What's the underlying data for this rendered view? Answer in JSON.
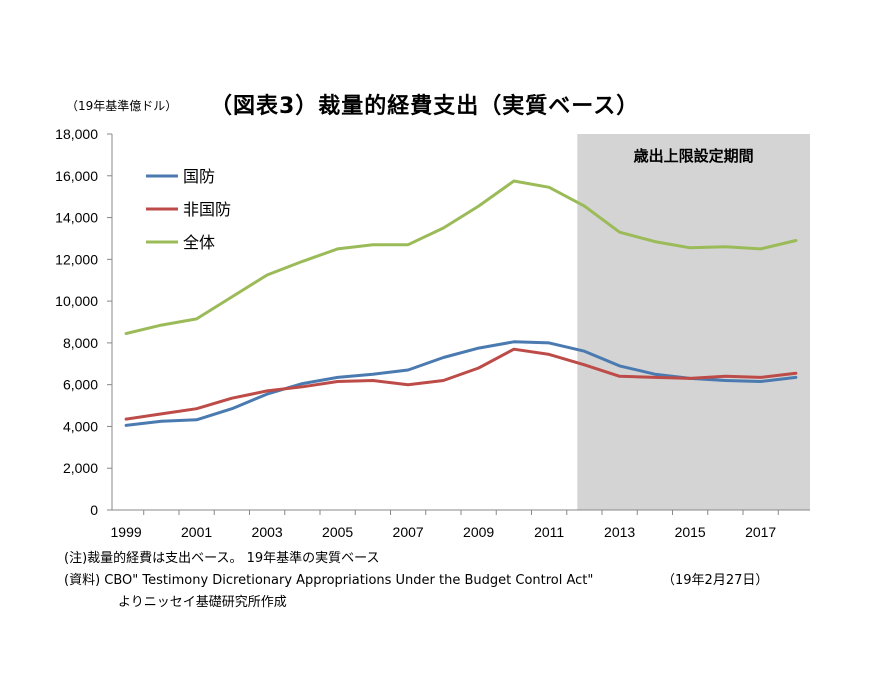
{
  "unit_label": "（19年基準億ドル）",
  "title": "（図表3）裁量的経費支出（実質ベース）",
  "notes": {
    "note": "(注)裁量的経費は支出ベース。 19年基準の実質ベース",
    "source": "(資料) CBO\" Testimony Dicretionary Appropriations Under the Budget Control Act\"",
    "date": "（19年2月27日）",
    "source_cont": "よりニッセイ基礎研究所作成"
  },
  "chart_data": {
    "type": "line",
    "x": [
      1999,
      2000,
      2001,
      2002,
      2003,
      2004,
      2005,
      2006,
      2007,
      2008,
      2009,
      2010,
      2011,
      2012,
      2013,
      2014,
      2015,
      2016,
      2017,
      2018
    ],
    "x_tick_labels": [
      "1999",
      "2001",
      "2003",
      "2005",
      "2007",
      "2009",
      "2011",
      "2013",
      "2015",
      "2017"
    ],
    "ylim": [
      0,
      18000
    ],
    "y_ticks": [
      0,
      2000,
      4000,
      6000,
      8000,
      10000,
      12000,
      14000,
      16000,
      18000
    ],
    "y_tick_labels": [
      "0",
      "2,000",
      "4,000",
      "6,000",
      "8,000",
      "10,000",
      "12,000",
      "14,000",
      "16,000",
      "18,000"
    ],
    "legend_position": "top-left",
    "shaded_region": {
      "label": "歳出上限設定期間",
      "x_start": 2011.8,
      "x_end": 2018.4,
      "color": "#d4d4d4"
    },
    "series": [
      {
        "name": "国防",
        "color": "#4a7ab0",
        "values": [
          4050,
          4250,
          4320,
          4850,
          5550,
          6050,
          6350,
          6500,
          6700,
          7300,
          7750,
          8050,
          8000,
          7600,
          6900,
          6500,
          6300,
          6200,
          6150,
          6350
        ]
      },
      {
        "name": "非国防",
        "color": "#bd4b48",
        "values": [
          4350,
          4600,
          4850,
          5350,
          5700,
          5900,
          6150,
          6200,
          6000,
          6200,
          6800,
          7700,
          7450,
          6950,
          6400,
          6350,
          6300,
          6400,
          6350,
          6550
        ]
      },
      {
        "name": "全体",
        "color": "#9bbb59",
        "values": [
          8450,
          8850,
          9150,
          10200,
          11250,
          11900,
          12500,
          12700,
          12700,
          13500,
          14550,
          15750,
          15450,
          14550,
          13300,
          12850,
          12550,
          12600,
          12500,
          12900
        ]
      }
    ]
  }
}
